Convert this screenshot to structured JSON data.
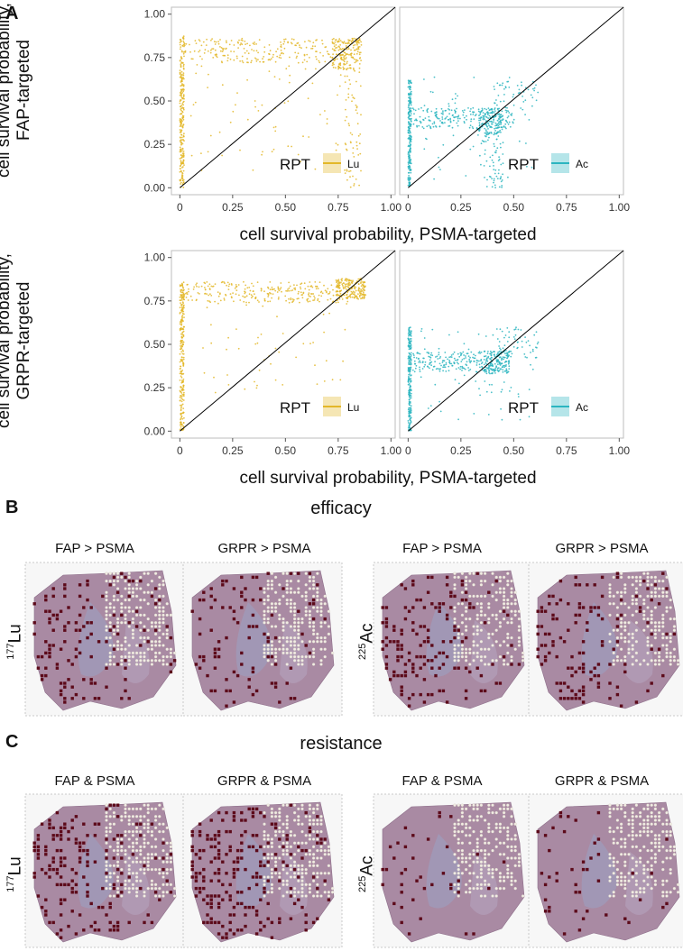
{
  "panel_a": {
    "letter": "A",
    "y_label_top": [
      "cell survival probability,",
      "FAP-targeted"
    ],
    "y_label_bottom": [
      "cell survival probability,",
      "GRPR-targeted"
    ],
    "x_label_top": "cell survival probability, PSMA-targeted",
    "x_label_bottom": "cell survival probability, PSMA-targeted",
    "legend_title": "RPT",
    "legend_lu": "Lu",
    "legend_ac": "Ac",
    "colors": {
      "lu": "#e3b728",
      "ac": "#2bb5c0"
    }
  },
  "chart_data": [
    {
      "type": "scatter",
      "id": "fap-lu",
      "series": "Lu",
      "xlabel": "cell survival probability, PSMA-targeted",
      "ylabel": "cell survival probability, FAP-targeted",
      "xlim": [
        0,
        1
      ],
      "ylim": [
        0,
        1
      ],
      "x_ticks": [
        "0",
        "0.25",
        "0.50",
        "0.75",
        "1.00"
      ],
      "y_ticks": [
        "0.00",
        "0.25",
        "0.50",
        "0.75",
        "1.00"
      ],
      "clusters": [
        {
          "x": [
            0,
            0.02
          ],
          "y": [
            0,
            0.88
          ],
          "n": 260,
          "note": "vertical band near x=0"
        },
        {
          "x": [
            0.02,
            0.8
          ],
          "y": [
            0.72,
            0.86
          ],
          "n": 230,
          "note": "horizontal band"
        },
        {
          "x": [
            0.72,
            0.86
          ],
          "y": [
            0.68,
            0.86
          ],
          "n": 170,
          "note": "dense cluster"
        },
        {
          "x": [
            0.78,
            0.86
          ],
          "y": [
            0.0,
            0.7
          ],
          "n": 60,
          "note": "vertical tail"
        },
        {
          "x": [
            0.05,
            0.8
          ],
          "y": [
            0.1,
            0.72
          ],
          "n": 70,
          "note": "scattered"
        }
      ]
    },
    {
      "type": "scatter",
      "id": "fap-ac",
      "series": "Ac",
      "xlabel": "cell survival probability, PSMA-targeted",
      "ylabel": "cell survival probability, FAP-targeted",
      "xlim": [
        0,
        1
      ],
      "ylim": [
        0,
        1
      ],
      "x_ticks": [
        "0",
        "0.25",
        "0.50",
        "0.75",
        "1.00"
      ],
      "y_ticks": [
        "0.00",
        "0.25",
        "0.50",
        "0.75",
        "1.00"
      ],
      "clusters": [
        {
          "x": [
            0,
            0.015
          ],
          "y": [
            0,
            0.62
          ],
          "n": 220,
          "note": "vertical band near x=0"
        },
        {
          "x": [
            0.02,
            0.5
          ],
          "y": [
            0.34,
            0.46
          ],
          "n": 200,
          "note": "horizontal band"
        },
        {
          "x": [
            0.33,
            0.45
          ],
          "y": [
            0.3,
            0.46
          ],
          "n": 140,
          "note": "dense cluster"
        },
        {
          "x": [
            0.35,
            0.45
          ],
          "y": [
            0.0,
            0.3
          ],
          "n": 60,
          "note": "vertical tail"
        },
        {
          "x": [
            0.4,
            0.62
          ],
          "y": [
            0.4,
            0.62
          ],
          "n": 50,
          "note": "along diagonal"
        },
        {
          "x": [
            0.05,
            0.6
          ],
          "y": [
            0.05,
            0.65
          ],
          "n": 60,
          "note": "scattered"
        }
      ]
    },
    {
      "type": "scatter",
      "id": "grpr-lu",
      "series": "Lu",
      "xlabel": "cell survival probability, PSMA-targeted",
      "ylabel": "cell survival probability, GRPR-targeted",
      "xlim": [
        0,
        1
      ],
      "ylim": [
        0,
        1
      ],
      "x_ticks": [
        "0",
        "0.25",
        "0.50",
        "0.75",
        "1.00"
      ],
      "y_ticks": [
        "0.00",
        "0.25",
        "0.50",
        "0.75",
        "1.00"
      ],
      "clusters": [
        {
          "x": [
            0,
            0.02
          ],
          "y": [
            0,
            0.86
          ],
          "n": 260,
          "note": "vertical band near x=0"
        },
        {
          "x": [
            0.02,
            0.8
          ],
          "y": [
            0.74,
            0.86
          ],
          "n": 260,
          "note": "horizontal band"
        },
        {
          "x": [
            0.74,
            0.88
          ],
          "y": [
            0.76,
            0.88
          ],
          "n": 190,
          "note": "dense cluster"
        },
        {
          "x": [
            0.1,
            0.8
          ],
          "y": [
            0.2,
            0.74
          ],
          "n": 50,
          "note": "scattered"
        }
      ]
    },
    {
      "type": "scatter",
      "id": "grpr-ac",
      "series": "Ac",
      "xlabel": "cell survival probability, PSMA-targeted",
      "ylabel": "cell survival probability, GRPR-targeted",
      "xlim": [
        0,
        1
      ],
      "ylim": [
        0,
        1
      ],
      "x_ticks": [
        "0",
        "0.25",
        "0.50",
        "0.75",
        "1.00"
      ],
      "y_ticks": [
        "0.00",
        "0.25",
        "0.50",
        "0.75",
        "1.00"
      ],
      "clusters": [
        {
          "x": [
            0,
            0.015
          ],
          "y": [
            0,
            0.6
          ],
          "n": 220,
          "note": "vertical band near x=0"
        },
        {
          "x": [
            0.02,
            0.45
          ],
          "y": [
            0.34,
            0.46
          ],
          "n": 200,
          "note": "horizontal band"
        },
        {
          "x": [
            0.36,
            0.48
          ],
          "y": [
            0.33,
            0.46
          ],
          "n": 150,
          "note": "dense cluster"
        },
        {
          "x": [
            0.42,
            0.62
          ],
          "y": [
            0.42,
            0.6
          ],
          "n": 60,
          "note": "along diagonal"
        },
        {
          "x": [
            0.05,
            0.6
          ],
          "y": [
            0.05,
            0.6
          ],
          "n": 60,
          "note": "scattered"
        }
      ]
    }
  ],
  "panel_b": {
    "letter": "B",
    "title": "efficacy",
    "maps": [
      {
        "title": "FAP > PSMA",
        "isotope": "Lu",
        "level": 0.55
      },
      {
        "title": "GRPR > PSMA",
        "isotope": "Lu",
        "level": 0.4
      },
      {
        "title": "FAP > PSMA",
        "isotope": "Ac",
        "level": 0.75
      },
      {
        "title": "GRPR > PSMA",
        "isotope": "Ac",
        "level": 0.6
      }
    ],
    "iso_left": {
      "mass": "177",
      "symbol": "Lu"
    },
    "iso_right": {
      "mass": "225",
      "symbol": "Ac"
    }
  },
  "panel_c": {
    "letter": "C",
    "title": "resistance",
    "maps": [
      {
        "title": "FAP & PSMA",
        "isotope": "Lu",
        "level": 0.8
      },
      {
        "title": "GRPR & PSMA",
        "isotope": "Lu",
        "level": 0.85
      },
      {
        "title": "FAP & PSMA",
        "isotope": "Ac",
        "level": 0.15
      },
      {
        "title": "GRPR & PSMA",
        "isotope": "Ac",
        "level": 0.2
      }
    ],
    "iso_left": {
      "mass": "177",
      "symbol": "Lu"
    },
    "iso_right": {
      "mass": "225",
      "symbol": "Ac"
    }
  }
}
